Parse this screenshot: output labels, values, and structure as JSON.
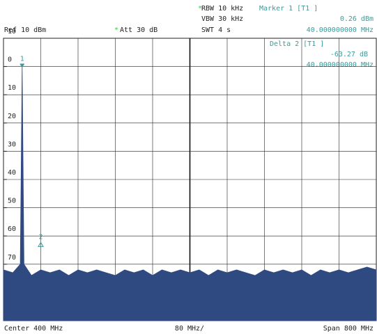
{
  "chart_data": {
    "type": "spectrum",
    "ref_level": "Ref  10 dBm",
    "att": "Att  30 dB",
    "rbw": "RBW 10 kHz",
    "vbw": "VBW 30 kHz",
    "swt": "SWT 4 s",
    "marker": {
      "name": "Marker 1 [T1 ]",
      "glyph": "1",
      "level": {
        "value": 0.26,
        "label": "0.26 dBm"
      },
      "freq": {
        "value": 40,
        "label": "40.000000000 MHz"
      }
    },
    "delta": {
      "name": "Delta 2 [T1 ]",
      "glyph": "2",
      "level": {
        "value": -63.27,
        "label": "-63.27 dB"
      },
      "freq": {
        "value": 40,
        "label": "40.000000000 MHz"
      }
    },
    "center": "Center 400 MHz",
    "per_div": "80 MHz/",
    "span": "Span 800 MHz",
    "xlim": [
      0,
      800
    ],
    "ylim": [
      -90,
      10
    ],
    "yticks": [
      10,
      0,
      {
        "value": -10,
        "label": "10"
      },
      {
        "value": -20,
        "label": "20"
      },
      {
        "value": -30,
        "label": "30"
      },
      {
        "value": -40,
        "label": "40"
      },
      {
        "value": -50,
        "label": "50"
      },
      {
        "value": -60,
        "label": "60"
      },
      {
        "value": -70,
        "label": "70"
      }
    ],
    "trace": {
      "color": "#2e4a80",
      "x": [
        0,
        20,
        36,
        40,
        44,
        60,
        80,
        100,
        120,
        140,
        160,
        180,
        200,
        220,
        240,
        260,
        280,
        300,
        320,
        340,
        360,
        380,
        400,
        420,
        440,
        460,
        480,
        500,
        520,
        540,
        560,
        580,
        600,
        620,
        640,
        660,
        680,
        700,
        720,
        740,
        760,
        780,
        800
      ],
      "values": [
        -72,
        -73,
        -70,
        0.26,
        -70,
        -74,
        -72,
        -73,
        -72,
        -74,
        -72,
        -73,
        -72,
        -73,
        -74,
        -72,
        -73,
        -72,
        -74,
        -72,
        -73,
        -72,
        -73,
        -72,
        -74,
        -72,
        -73,
        -72,
        -73,
        -74,
        -72,
        -73,
        -72,
        -73,
        -72,
        -74,
        -72,
        -73,
        -72,
        -73,
        -72,
        -71,
        -72
      ]
    }
  }
}
